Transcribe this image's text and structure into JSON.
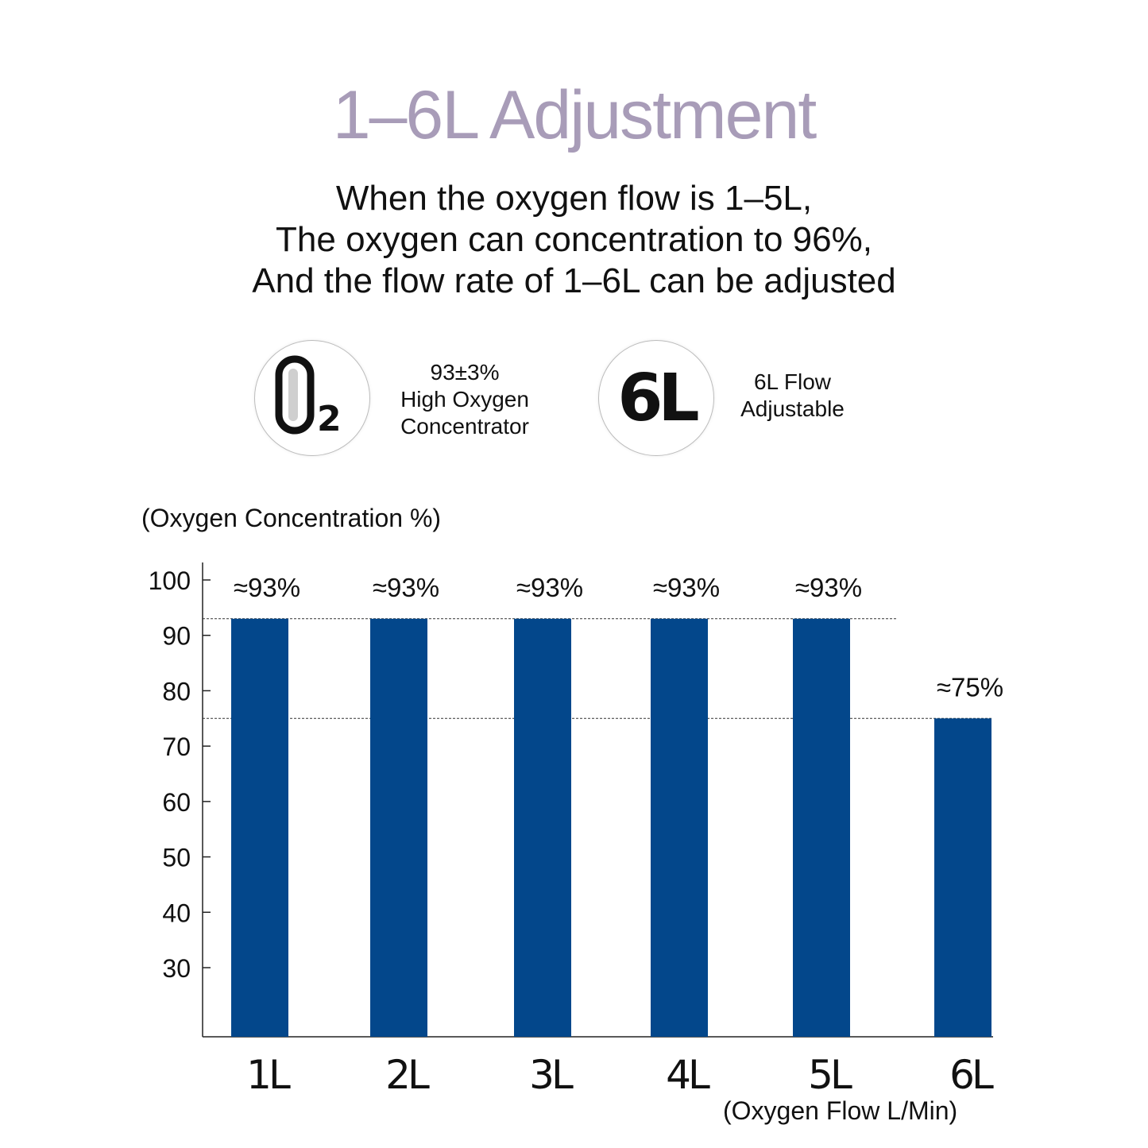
{
  "header": {
    "title": "1–6L Adjustment",
    "subtitle_lines": [
      "When the oxygen flow is 1–5L,",
      "The oxygen can concentration to 96%,",
      "And the flow rate of 1–6L can be adjusted"
    ]
  },
  "features": [
    {
      "icon": "o2-molecule-icon",
      "lines": [
        "93±3%",
        "High Oxygen",
        "Concentrator"
      ]
    },
    {
      "icon_text": "6L",
      "lines": [
        "6L Flow",
        "Adjustable"
      ]
    }
  ],
  "colors": {
    "title": "#a89cb8",
    "bar": "#03478b",
    "text": "#111111"
  },
  "chart_data": {
    "type": "bar",
    "categories": [
      "1L",
      "2L",
      "3L",
      "4L",
      "5L",
      "6L"
    ],
    "values": [
      93,
      93,
      93,
      93,
      93,
      75
    ],
    "data_labels": [
      "≈93%",
      "≈93%",
      "≈93%",
      "≈93%",
      "≈93%",
      "≈75%"
    ],
    "ylabel": "(Oxygen Concentration %)",
    "xlabel": "(Oxygen Flow L/Min)",
    "yticks": [
      100,
      90,
      80,
      70,
      60,
      50,
      40,
      30
    ],
    "reference_lines": [
      93,
      75
    ],
    "grid": false,
    "legend": "none"
  }
}
